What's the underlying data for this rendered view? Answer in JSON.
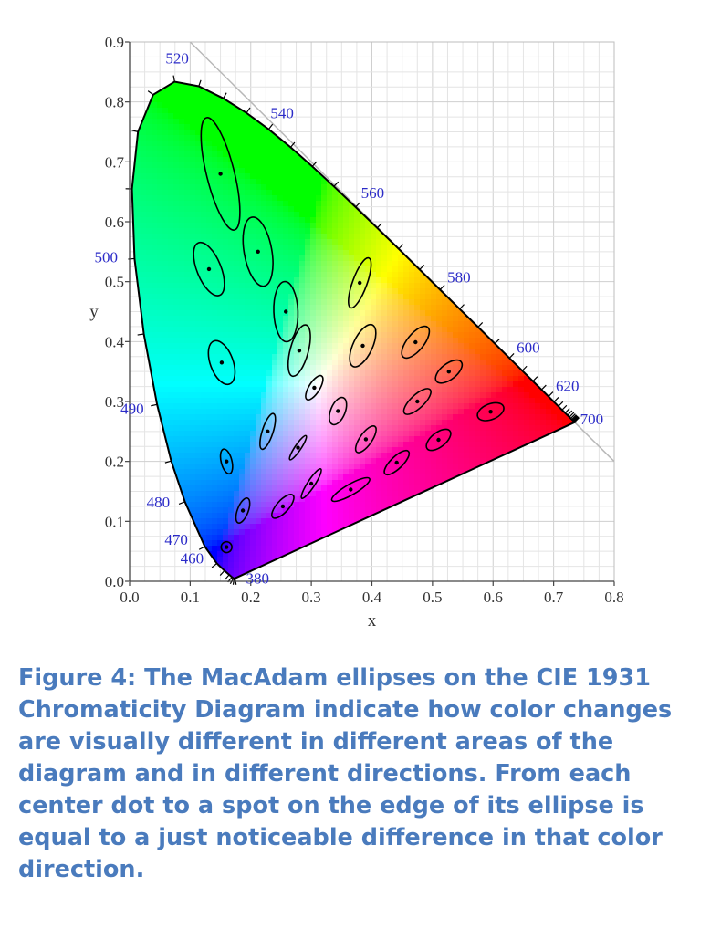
{
  "chart_data": {
    "type": "scatter",
    "title": "",
    "xlabel": "x",
    "ylabel": "y",
    "xlim": [
      0,
      0.8
    ],
    "ylim": [
      0,
      0.9
    ],
    "grid": true,
    "xticks": [
      "0.0",
      "0.1",
      "0.2",
      "0.3",
      "0.4",
      "0.5",
      "0.6",
      "0.7",
      "0.8"
    ],
    "yticks": [
      "0.0",
      "0.1",
      "0.2",
      "0.3",
      "0.4",
      "0.5",
      "0.6",
      "0.7",
      "0.8",
      "0.9"
    ],
    "spectral_locus_labels": [
      {
        "text": "380",
        "x": 0.1741,
        "y": 0.005
      },
      {
        "text": "460",
        "x": 0.144,
        "y": 0.0297
      },
      {
        "text": "470",
        "x": 0.1241,
        "y": 0.0578
      },
      {
        "text": "480",
        "x": 0.0913,
        "y": 0.1327
      },
      {
        "text": "490",
        "x": 0.0454,
        "y": 0.295
      },
      {
        "text": "500",
        "x": 0.0082,
        "y": 0.5384
      },
      {
        "text": "520",
        "x": 0.0743,
        "y": 0.8338
      },
      {
        "text": "540",
        "x": 0.2296,
        "y": 0.7543
      },
      {
        "text": "560",
        "x": 0.3731,
        "y": 0.6245
      },
      {
        "text": "580",
        "x": 0.5125,
        "y": 0.4866
      },
      {
        "text": "600",
        "x": 0.627,
        "y": 0.3725
      },
      {
        "text": "620",
        "x": 0.6915,
        "y": 0.3083
      },
      {
        "text": "700",
        "x": 0.7347,
        "y": 0.2653
      }
    ],
    "ellipses": [
      {
        "x": 0.16,
        "y": 0.057,
        "a": 0.0009,
        "b": 0.0009,
        "angle": 63
      },
      {
        "x": 0.187,
        "y": 0.118,
        "a": 0.0022,
        "b": 0.0009,
        "angle": 69
      },
      {
        "x": 0.253,
        "y": 0.125,
        "a": 0.0025,
        "b": 0.001,
        "angle": 48
      },
      {
        "x": 0.15,
        "y": 0.68,
        "a": 0.0096,
        "b": 0.0023,
        "angle": 104
      },
      {
        "x": 0.131,
        "y": 0.521,
        "a": 0.0047,
        "b": 0.002,
        "angle": 112
      },
      {
        "x": 0.212,
        "y": 0.55,
        "a": 0.0058,
        "b": 0.0023,
        "angle": 100
      },
      {
        "x": 0.258,
        "y": 0.45,
        "a": 0.005,
        "b": 0.002,
        "angle": 92
      },
      {
        "x": 0.152,
        "y": 0.365,
        "a": 0.0038,
        "b": 0.0019,
        "angle": 110
      },
      {
        "x": 0.28,
        "y": 0.385,
        "a": 0.0044,
        "b": 0.0015,
        "angle": 75
      },
      {
        "x": 0.38,
        "y": 0.498,
        "a": 0.0044,
        "b": 0.0012,
        "angle": 70
      },
      {
        "x": 0.16,
        "y": 0.2,
        "a": 0.0021,
        "b": 0.0009,
        "angle": 104
      },
      {
        "x": 0.228,
        "y": 0.25,
        "a": 0.0031,
        "b": 0.0009,
        "angle": 72
      },
      {
        "x": 0.305,
        "y": 0.323,
        "a": 0.0023,
        "b": 0.0009,
        "angle": 58
      },
      {
        "x": 0.385,
        "y": 0.393,
        "a": 0.0038,
        "b": 0.0016,
        "angle": 65
      },
      {
        "x": 0.472,
        "y": 0.399,
        "a": 0.0032,
        "b": 0.0014,
        "angle": 51
      },
      {
        "x": 0.527,
        "y": 0.35,
        "a": 0.0026,
        "b": 0.0013,
        "angle": 38
      },
      {
        "x": 0.475,
        "y": 0.3,
        "a": 0.0029,
        "b": 0.0011,
        "angle": 43
      },
      {
        "x": 0.51,
        "y": 0.236,
        "a": 0.0024,
        "b": 0.0012,
        "angle": 38
      },
      {
        "x": 0.596,
        "y": 0.283,
        "a": 0.0023,
        "b": 0.0013,
        "angle": 22
      },
      {
        "x": 0.344,
        "y": 0.284,
        "a": 0.0024,
        "b": 0.0012,
        "angle": 68
      },
      {
        "x": 0.39,
        "y": 0.237,
        "a": 0.0026,
        "b": 0.001,
        "angle": 55
      },
      {
        "x": 0.441,
        "y": 0.198,
        "a": 0.0027,
        "b": 0.001,
        "angle": 44
      },
      {
        "x": 0.278,
        "y": 0.223,
        "a": 0.0024,
        "b": 0.0005,
        "angle": 56
      },
      {
        "x": 0.3,
        "y": 0.163,
        "a": 0.0029,
        "b": 0.0006,
        "angle": 57
      },
      {
        "x": 0.365,
        "y": 0.153,
        "a": 0.0036,
        "b": 0.0009,
        "angle": 30
      }
    ]
  },
  "caption": "Figure 4: The MacAdam ellipses on the CIE 1931 Chromaticity Diagram indicate how color changes are visually different in different areas of the diagram and in different directions. From each center dot to a spot on the edge of its ellipse is equal to a just noticeable difference in that color direction."
}
